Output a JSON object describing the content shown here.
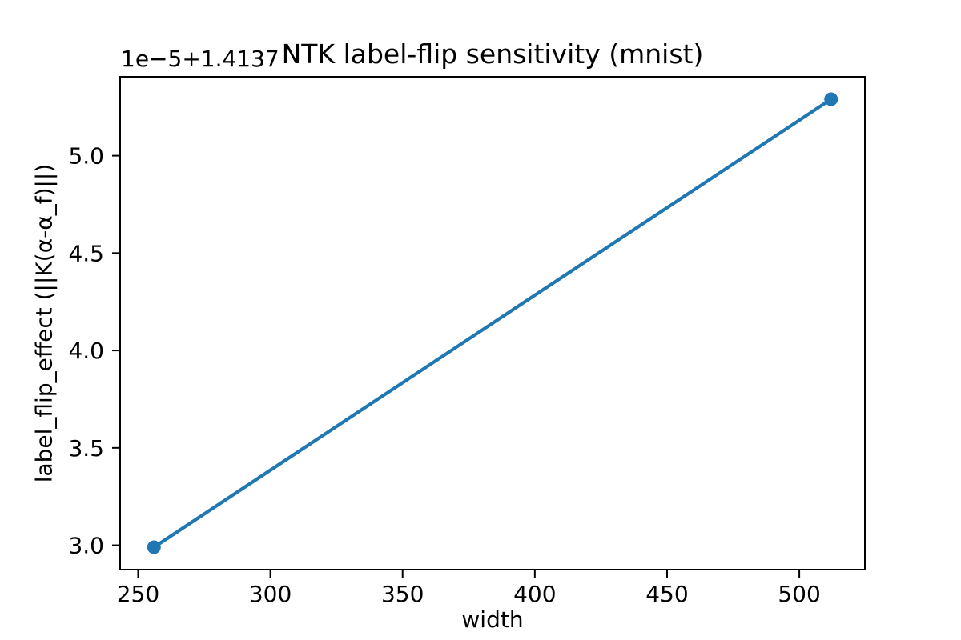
{
  "chart_data": {
    "type": "line",
    "title": "NTK label-flip sensitivity (mnist)",
    "xlabel": "width",
    "ylabel": "label_flip_effect (||K(α-α_f)||)",
    "y_axis_offset_text": "1e−5+1.4137",
    "y_axis_scale_factor": 1e-05,
    "y_axis_offset": 1.4137,
    "series": [
      {
        "name": "label_flip_effect",
        "x": [
          256,
          512
        ],
        "y": [
          2.99,
          5.29
        ],
        "y_absolute": [
          1.4137299,
          1.4137529
        ],
        "color": "#1f77b4",
        "marker": "circle"
      }
    ],
    "xlim": [
      243.2,
      524.8
    ],
    "ylim": [
      2.875,
      5.405
    ],
    "xticks": [
      250,
      300,
      350,
      400,
      450,
      500
    ],
    "yticks": [
      "3.0",
      "3.5",
      "4.0",
      "4.5",
      "5.0"
    ],
    "grid": false,
    "legend": null,
    "text_color": "#000000",
    "axis_color": "#000000",
    "background": "#ffffff"
  }
}
